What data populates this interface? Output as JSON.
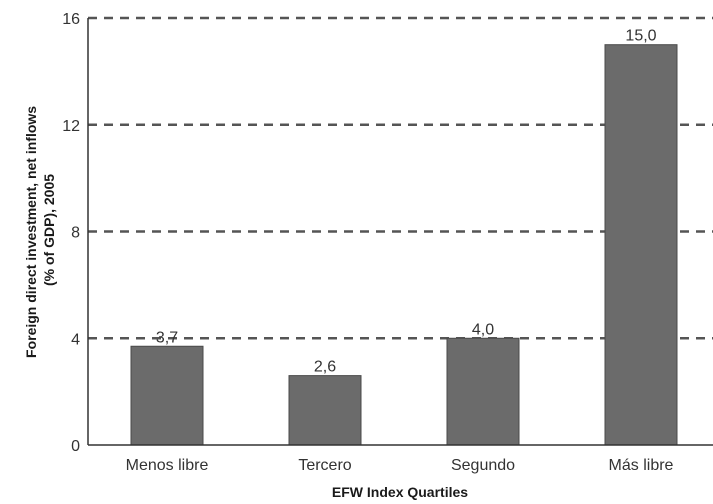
{
  "chart_data": {
    "type": "bar",
    "title": "",
    "xlabel": "EFW Index Quartiles",
    "ylabel": [
      "Foreign direct investment, net inflows",
      "(% of GDP), 2005"
    ],
    "categories": [
      "Menos libre",
      "Tercero",
      "Segundo",
      "Más libre"
    ],
    "values": [
      3.7,
      2.6,
      4.0,
      15.0
    ],
    "value_labels": [
      "3,7",
      "2,6",
      "4,0",
      "15,0"
    ],
    "ylim": [
      0,
      16
    ],
    "yticks": [
      0,
      4,
      8,
      12,
      16
    ],
    "ytick_labels": [
      "0",
      "4",
      "8",
      "12",
      "16"
    ],
    "grid": "horizontal dashed",
    "legend": "none",
    "colors": {
      "bar": "#6b6b6b",
      "bar_stroke": "#4a4a4a",
      "grid": "#555555",
      "axis": "#333333"
    }
  }
}
